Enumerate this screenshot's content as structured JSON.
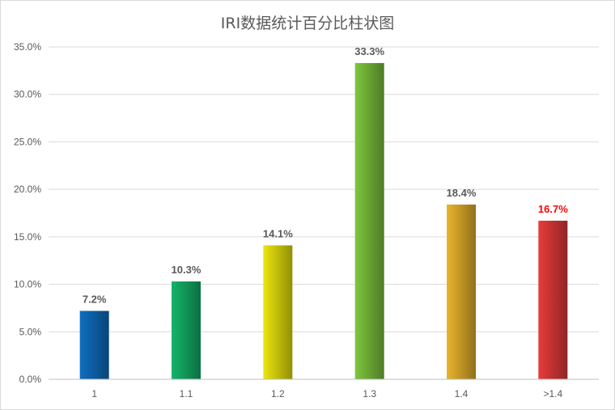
{
  "chart_data": {
    "type": "bar",
    "title": "IRI数据统计百分比柱状图",
    "xlabel": "",
    "ylabel": "",
    "categories": [
      "1",
      "1.1",
      "1.2",
      "1.3",
      "1.4",
      ">1.4"
    ],
    "values": [
      7.2,
      10.3,
      14.1,
      33.3,
      18.4,
      16.7
    ],
    "data_labels": [
      "7.2%",
      "10.3%",
      "14.1%",
      "33.3%",
      "18.4%",
      "16.7%"
    ],
    "ylim": [
      0,
      35
    ],
    "yticks": [
      0,
      5,
      10,
      15,
      20,
      25,
      30,
      35
    ],
    "ytick_labels": [
      "0.0%",
      "5.0%",
      "10.0%",
      "15.0%",
      "20.0%",
      "25.0%",
      "30.0%",
      "35.0%"
    ],
    "grid": true,
    "legend": "none",
    "bar_colors": [
      "#0e6fc1",
      "#14b46a",
      "#ece60c",
      "#7ec73c",
      "#eab52c",
      "#e83b3b"
    ],
    "label_colors": [
      "#595959",
      "#595959",
      "#595959",
      "#595959",
      "#595959",
      "#ff0000"
    ]
  }
}
